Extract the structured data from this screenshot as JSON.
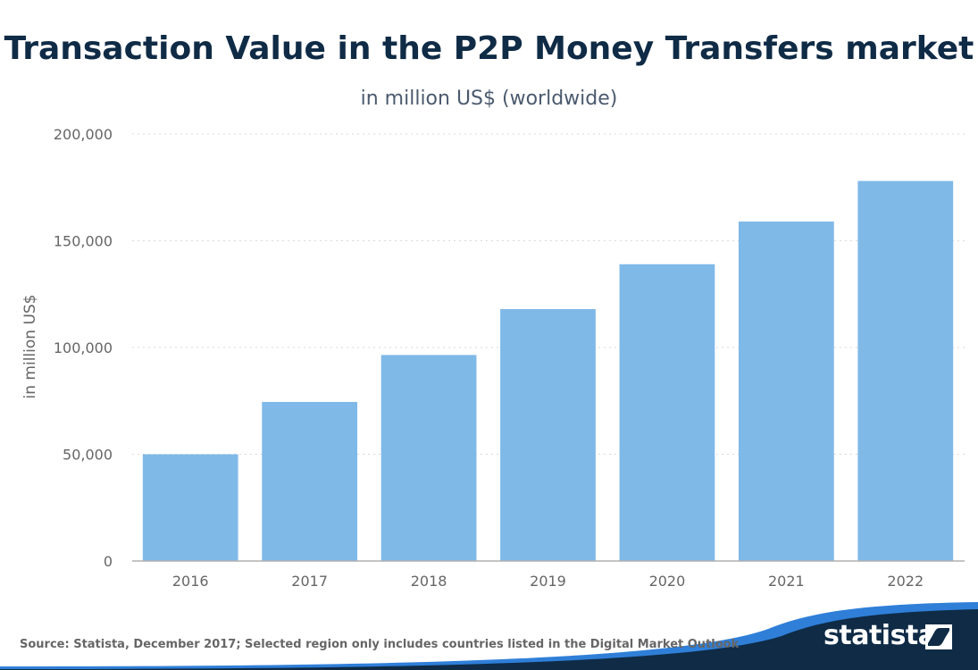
{
  "header": {
    "title": "Transaction Value  in the P2P Money Transfers market",
    "subtitle": "in million US$ (worldwide)"
  },
  "footer": {
    "source": "Source: Statista, December 2017; Selected region only includes countries listed in the Digital Market Outlook",
    "logo_text": "statista"
  },
  "colors": {
    "bar": "#7fb9e8",
    "title": "#0f2b46",
    "subtitle": "#4b5a6e",
    "axis_text": "#666666",
    "grid": "#d9d9d9",
    "footer_dark": "#0f2b46",
    "footer_accent": "#2f7fd8"
  },
  "chart_data": {
    "type": "bar",
    "title": "Transaction Value  in the P2P Money Transfers market",
    "subtitle": "in million US$ (worldwide)",
    "xlabel": "",
    "ylabel": "in million US$",
    "categories": [
      "2016",
      "2017",
      "2018",
      "2019",
      "2020",
      "2021",
      "2022"
    ],
    "values": [
      50000,
      74500,
      96500,
      118000,
      139000,
      159000,
      178000
    ],
    "ylim": [
      0,
      200000
    ],
    "yticks": [
      0,
      50000,
      100000,
      150000,
      200000
    ],
    "ytick_labels": [
      "0",
      "50,000",
      "100,000",
      "150,000",
      "200,000"
    ],
    "grid": true,
    "legend": false
  }
}
